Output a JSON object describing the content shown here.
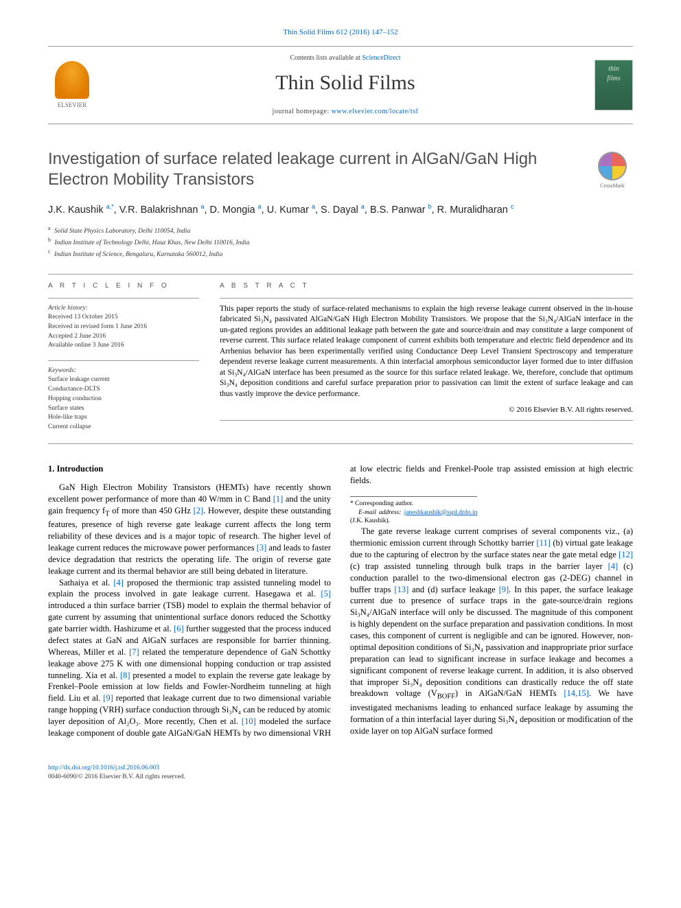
{
  "header": {
    "journal_ref": "Thin Solid Films 612 (2016) 147–152",
    "contents_prefix": "Contents lists available at ",
    "contents_link": "ScienceDirect",
    "journal_name": "Thin Solid Films",
    "homepage_prefix": "journal homepage: ",
    "homepage_url": "www.elsevier.com/locate/tsf",
    "elsevier_label": "ELSEVIER",
    "cover_text_1": "thin",
    "cover_text_2": "films",
    "crossmark_label": "CrossMark"
  },
  "article": {
    "title": "Investigation of surface related leakage current in AlGaN/GaN High Electron Mobility Transistors",
    "authors_html": "J.K. Kaushik <sup>a,*</sup>, V.R. Balakrishnan <sup>a</sup>, D. Mongia <sup>a</sup>, U. Kumar <sup>a</sup>, S. Dayal <sup>a</sup>, B.S. Panwar <sup>b</sup>, R. Muralidharan <sup>c</sup>",
    "affiliations": [
      {
        "sup": "a",
        "text": "Solid State Physics Laboratory, Delhi 110054, India"
      },
      {
        "sup": "b",
        "text": "Indian Institute of Technology Delhi, Hauz Khas, New Delhi 110016, India"
      },
      {
        "sup": "c",
        "text": "Indian Institute of Science, Bengaluru, Karnataka 560012, India"
      }
    ]
  },
  "info": {
    "heading": "A R T I C L E   I N F O",
    "history_label": "Article history:",
    "history": [
      "Received 13 October 2015",
      "Received in revised form 1 June 2016",
      "Accepted 2 June 2016",
      "Available online 3 June 2016"
    ],
    "keywords_label": "Keywords:",
    "keywords": [
      "Surface leakage current",
      "Conductance-DLTS",
      "Hopping conduction",
      "Surface states",
      "Hole-like traps",
      "Current collapse"
    ]
  },
  "abstract": {
    "heading": "A B S T R A C T",
    "text": "This paper reports the study of surface-related mechanisms to explain the high reverse leakage current observed in the in-house fabricated Si₃N₄ passivated AlGaN/GaN High Electron Mobility Transistors. We propose that the Si₃N₄/AlGaN interface in the un-gated regions provides an additional leakage path between the gate and source/drain and may constitute a large component of reverse current. This surface related leakage component of current exhibits both temperature and electric field dependence and its Arrhenius behavior has been experimentally verified using Conductance Deep Level Transient Spectroscopy and temperature dependent reverse leakage current measurements. A thin interfacial amorphous semiconductor layer formed due to inter diffusion at Si₃N₄/AlGaN interface has been presumed as the source for this surface related leakage. We, therefore, conclude that optimum Si₃N₄ deposition conditions and careful surface preparation prior to passivation can limit the extent of surface leakage and can thus vastly improve the device performance.",
    "copyright": "© 2016 Elsevier B.V. All rights reserved."
  },
  "body": {
    "heading": "1. Introduction",
    "p1_a": "GaN High Electron Mobility Transistors (HEMTs) have recently shown excellent power performance of more than 40 W/mm in C Band ",
    "ref1": "[1]",
    "p1_b": " and the unity gain frequency f",
    "p1_sub": "T",
    "p1_c": " of more than 450 GHz ",
    "ref2": "[2]",
    "p1_d": ". However, despite these outstanding features, presence of high reverse gate leakage current affects the long term reliability of these devices and is a major topic of research. The higher level of leakage current reduces the microwave power performances ",
    "ref3": "[3]",
    "p1_e": " and leads to faster device degradation that restricts the operating life. The origin of reverse gate leakage current and its thermal behavior are still being debated in literature.",
    "p2_a": "Sathaiya et al. ",
    "ref4": "[4]",
    "p2_b": " proposed the thermionic trap assisted tunneling model to explain the process involved in gate leakage current. Hasegawa et al. ",
    "ref5": "[5]",
    "p2_c": " introduced a thin surface barrier (TSB) model to explain the thermal behavior of gate current by assuming that unintentional surface donors reduced the Schottky gate barrier width. Hashizume et al. ",
    "ref6": "[6]",
    "p2_d": " further suggested that the process induced defect states at GaN and AlGaN surfaces are responsible for barrier thinning. Whereas, Miller et al. ",
    "ref7": "[7]",
    "p2_e": " related the temperature dependence of GaN Schottky leakage above 275 K with one dimensional hopping conduction or trap assisted tunneling. Xia et al. ",
    "ref8": "[8]",
    "p2_f": " presented a model to explain the reverse gate leakage by Frenkel–Poole emission at low fields and Fowler-Nordheim tunneling at high field. Liu et al. ",
    "ref9": "[9]",
    "p2_g": " reported that leakage current due to two dimensional variable range hopping (VRH) surface conduction through Si₃N₄ can be reduced by atomic layer deposition of Al₂O₃. More recently, Chen et al. ",
    "ref10": "[10]",
    "p2_h": " modeled the surface leakage component of double gate AlGaN/GaN HEMTs by two dimensional VRH at low electric fields and Frenkel-Poole trap assisted emission at high electric fields.",
    "p3_a": "The gate reverse leakage current comprises of several components viz., (a) thermionic emission current through Schottky barrier ",
    "ref11": "[11]",
    "p3_b": " (b) virtual gate leakage due to the capturing of electron by the surface states near the gate metal edge ",
    "ref12": "[12]",
    "p3_c": " (c) trap assisted tunneling through bulk traps in the barrier layer ",
    "ref4b": "[4]",
    "p3_d": " (c) conduction parallel to the two-dimensional electron gas (2-DEG) channel in buffer traps ",
    "ref13": "[13]",
    "p3_e": " and (d) surface leakage ",
    "ref9b": "[9]",
    "p3_f": ". In this paper, the surface leakage current due to presence of surface traps in the gate-source/drain regions Si₃N₄/AlGaN interface will only be discussed. The magnitude of this component is highly dependent on the surface preparation and passivation conditions. In most cases, this component of current is negligible and can be ignored. However, non-optimal deposition conditions of Si₃N₄ passivation and inappropriate prior surface preparation can lead to significant increase in surface leakage and becomes a significant component of reverse leakage current. In addition, it is also observed that improper Si₃N₄ deposition conditions can drastically reduce the off state breakdown voltage (V",
    "p3_sub": "BOFF",
    "p3_g": ") in AlGaN/GaN HEMTs ",
    "ref1415": "[14,15]",
    "p3_h": ". We have investigated mechanisms leading to enhanced surface leakage by assuming the formation of a thin interfacial layer during Si₃N₄ deposition or modification of the oxide layer on top AlGaN surface formed"
  },
  "corr": {
    "star": "*",
    "label": "Corresponding author.",
    "email_label": "E-mail address:",
    "email": "janeshkaushik@sspl.drdo.in",
    "who": "(J.K. Kaushik)."
  },
  "footer": {
    "doi": "http://dx.doi.org/10.1016/j.tsf.2016.06.003",
    "issn_line": "0040-6090/© 2016 Elsevier B.V. All rights reserved."
  },
  "colors": {
    "link": "#0066cc",
    "text": "#000000",
    "heading_gray": "#505050",
    "rule": "#999999"
  }
}
